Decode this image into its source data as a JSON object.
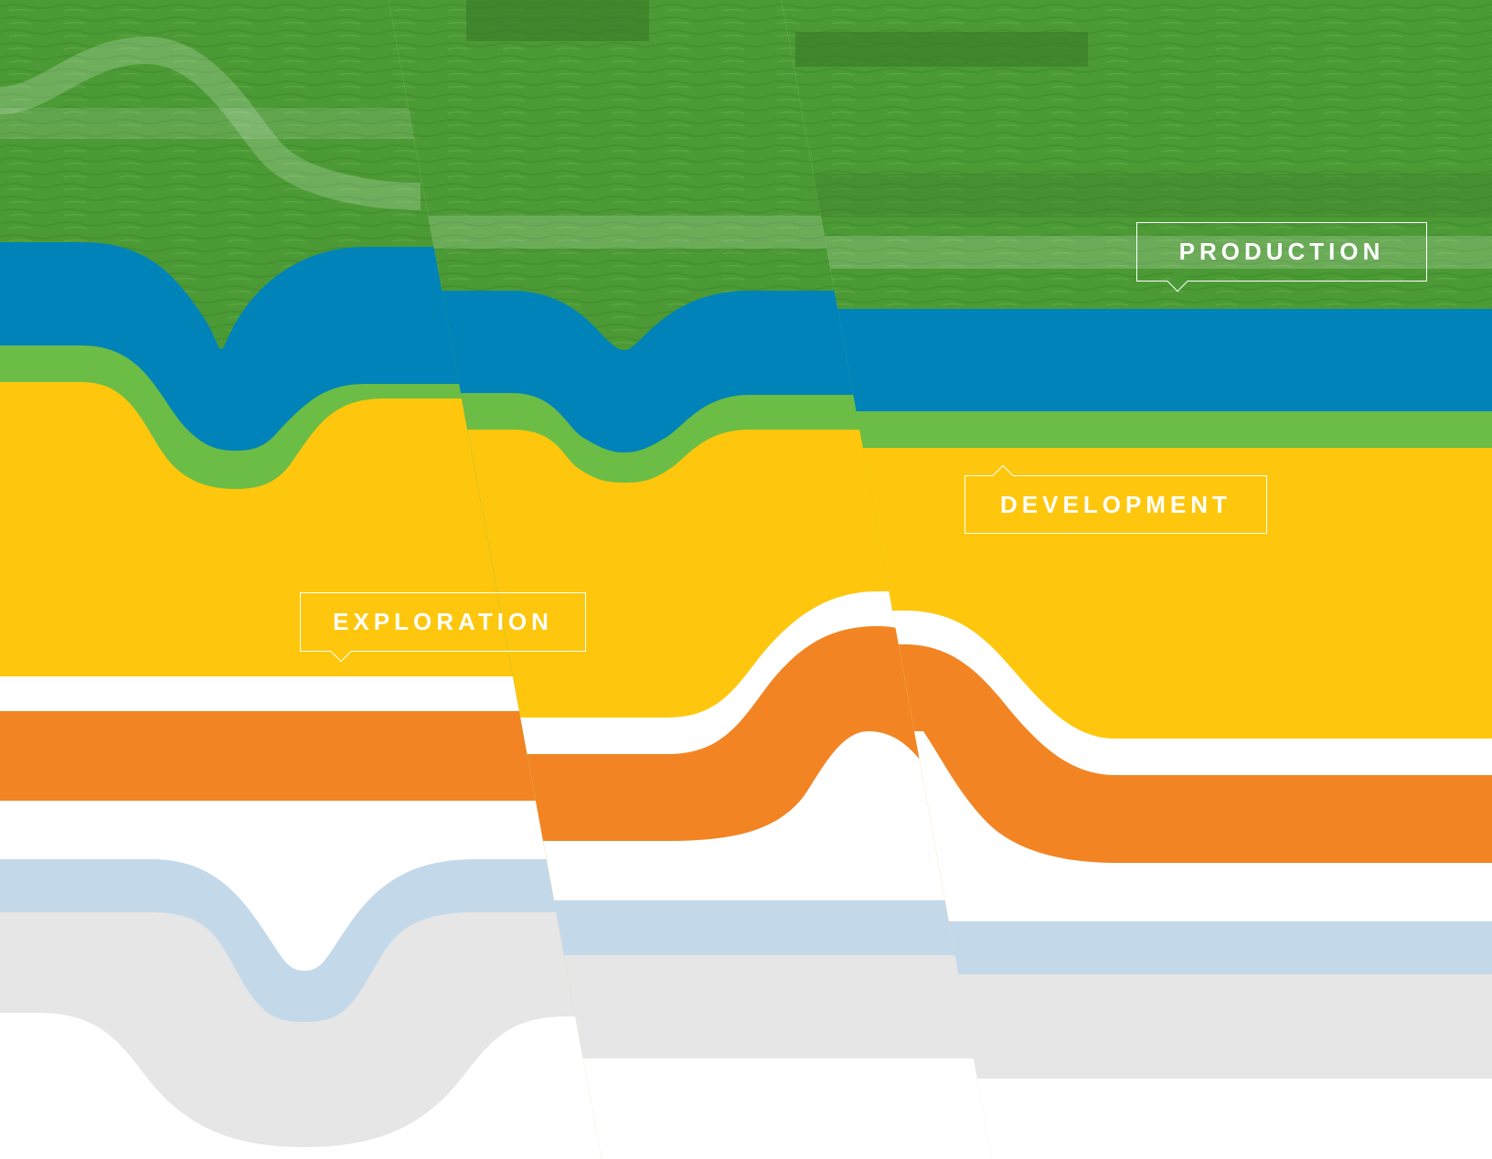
{
  "labels": {
    "production": "PRODUCTION",
    "development": "DEVELOPMENT",
    "exploration": "EXPLORATION"
  },
  "colors": {
    "sea_green": "#4c9a35",
    "water_blue": "#0083b8",
    "bright_green": "#6cbd45",
    "yellow": "#fec70d",
    "orange": "#f28423",
    "light_blue": "#c3d9ea",
    "light_gray": "#e6e6e6",
    "white": "#ffffff"
  }
}
